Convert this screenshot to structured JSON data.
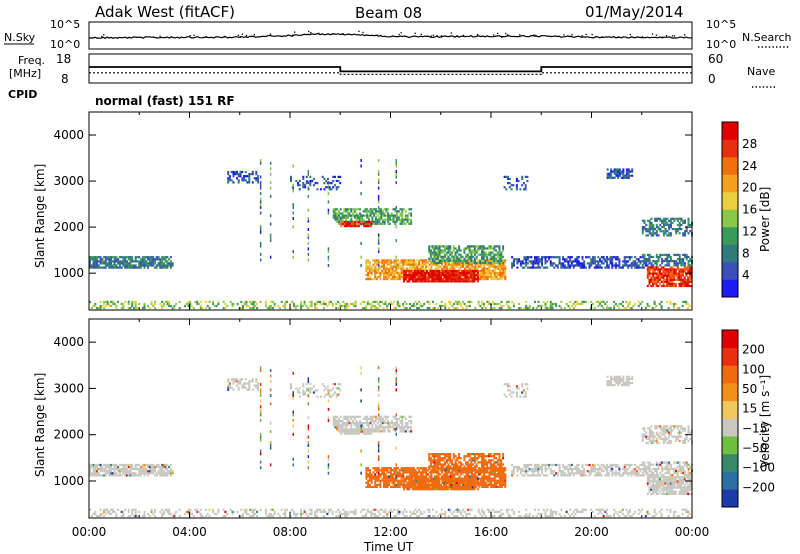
{
  "header": {
    "station": "Adak West (fitACF)",
    "beam": "Beam 08",
    "date": "01/May/2014"
  },
  "top_panels": {
    "nsky_label": "N.Sky",
    "nsearch_label": "N.Search",
    "nsky_ticks": [
      "10^5",
      "10^0"
    ],
    "nsearch_ticks": [
      "10^5",
      "10^0"
    ],
    "freq_label_1": "Freq.",
    "freq_label_2": "[MHz]",
    "freq_ticks": [
      "18",
      "8"
    ],
    "nave_label": "Nave",
    "nave_ticks": [
      "60",
      "0"
    ],
    "cpid_label": "CPID",
    "cpid_text": "normal (fast) 151 RF"
  },
  "colors": {
    "power_scale": [
      "#1c1cf0",
      "#3a4fb8",
      "#2f7a7a",
      "#3a9a5a",
      "#8ac84a",
      "#e8d040",
      "#f4a020",
      "#f07010",
      "#e83010",
      "#e00000"
    ],
    "velocity_scale": [
      "#1c3aa8",
      "#2d6fa0",
      "#3a8a6a",
      "#6fc040",
      "#c8c8c0",
      "#f0c860",
      "#f09018",
      "#f06a10",
      "#e83010",
      "#e00000"
    ]
  },
  "chart_data": [
    {
      "type": "line",
      "title": "",
      "xlabel": "Time UT",
      "ylabel": "N.Sky",
      "ylabel_right": "N.Search",
      "log_scale": true,
      "ylim": [
        1,
        100000
      ],
      "x_ticks": [
        "00:00",
        "04:00",
        "08:00",
        "12:00",
        "16:00",
        "20:00",
        "00:00"
      ],
      "x": [
        0,
        2,
        4,
        6,
        8,
        9,
        10,
        11,
        12,
        14,
        16,
        18,
        20,
        22,
        24
      ],
      "series": [
        {
          "values": [
            120,
            130,
            140,
            150,
            300,
            600,
            500,
            400,
            200,
            180,
            250,
            220,
            160,
            150,
            140
          ]
        }
      ]
    },
    {
      "type": "line",
      "title": "",
      "ylabel": "Freq. [MHz]",
      "ylabel_right": "Nave",
      "ylim": [
        8,
        18
      ],
      "ylim_right": [
        0,
        60
      ],
      "x": [
        0,
        10,
        10,
        18,
        18,
        24
      ],
      "series": [
        {
          "values": [
            13.5,
            13.5,
            12,
            12,
            13.5,
            13.5
          ]
        },
        {
          "values": [
            11.5,
            11.5,
            11,
            11,
            11.5,
            11.5
          ]
        }
      ]
    },
    {
      "type": "heatmap",
      "title": "",
      "xlabel": "",
      "ylabel": "Slant Range [km]",
      "colorbar_label": "Power [dB]",
      "colorbar_ticks": [
        "28",
        "24",
        "20",
        "16",
        "12",
        "8",
        "4"
      ],
      "xlim": [
        0,
        24
      ],
      "ylim": [
        200,
        4500
      ],
      "y_ticks": [
        "4000",
        "3000",
        "2000",
        "1000"
      ],
      "x_ticks": [
        "00:00",
        "04:00",
        "08:00",
        "12:00",
        "16:00",
        "20:00",
        "00:00"
      ]
    },
    {
      "type": "heatmap",
      "title": "",
      "xlabel": "Time UT",
      "ylabel": "Slant Range [km]",
      "colorbar_label": "Velocity [m s⁻¹]",
      "colorbar_ticks": [
        "200",
        "100",
        "50",
        "15",
        "−15",
        "−50",
        "−100",
        "−200"
      ],
      "xlim": [
        0,
        24
      ],
      "ylim": [
        200,
        4500
      ],
      "y_ticks": [
        "4000",
        "3000",
        "2000",
        "1000"
      ],
      "x_ticks": [
        "00:00",
        "04:00",
        "08:00",
        "12:00",
        "16:00",
        "20:00",
        "00:00"
      ]
    }
  ]
}
